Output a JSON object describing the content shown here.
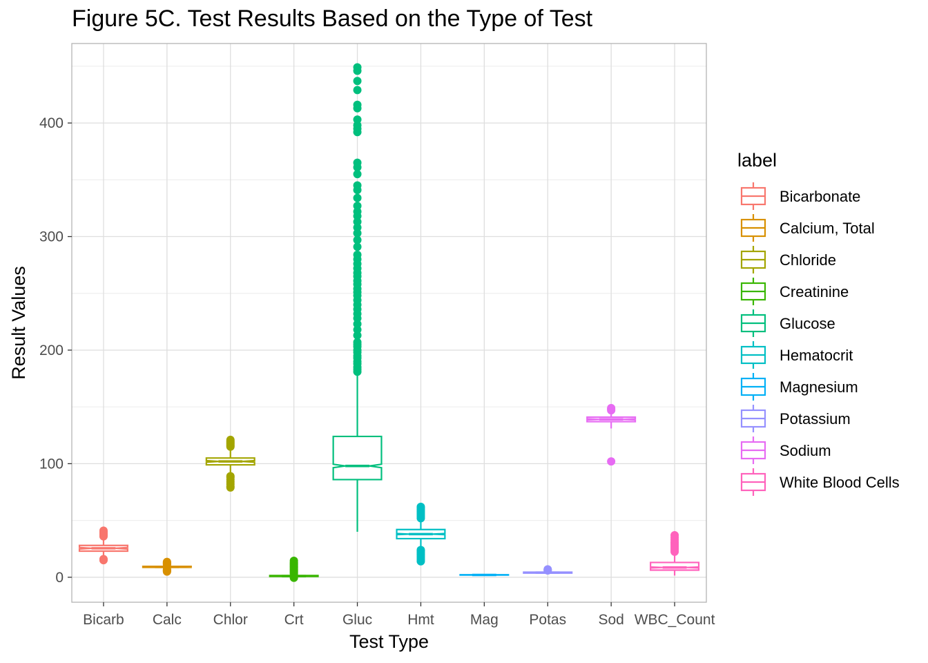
{
  "chart_data": {
    "type": "boxplot",
    "title": "Figure 5C. Test Results Based on the Type of Test",
    "xlabel": "Test Type",
    "ylabel": "Result Values",
    "ylim": [
      -22,
      470
    ],
    "yticks": [
      0,
      100,
      200,
      300,
      400
    ],
    "grid": true,
    "notched": true,
    "legend": {
      "title": "label",
      "placement": "right",
      "entries": [
        "Bicarbonate",
        "Calcium, Total",
        "Chloride",
        "Creatinine",
        "Glucose",
        "Hematocrit",
        "Magnesium",
        "Potassium",
        "Sodium",
        "White Blood Cells"
      ]
    },
    "categories": [
      "Bicarb",
      "Calc",
      "Chlor",
      "Crt",
      "Gluc",
      "Hmt",
      "Mag",
      "Potas",
      "Sod",
      "WBC_Count"
    ],
    "series": [
      {
        "name": "Bicarbonate",
        "color": "#F8766D",
        "whisker_low": 18,
        "q1": 23,
        "median": 25.5,
        "q3": 28,
        "whisker_high": 33,
        "notch": [
          24.8,
          26.2
        ],
        "outliers": [
          15,
          15.5,
          16,
          36,
          37,
          38,
          39,
          40,
          41
        ]
      },
      {
        "name": "Calcium, Total",
        "color": "#D89000",
        "whisker_low": 7.8,
        "q1": 8.7,
        "median": 9.1,
        "q3": 9.6,
        "whisker_high": 10.5,
        "notch": [
          8.95,
          9.25
        ],
        "outliers": [
          5,
          5.5,
          6,
          6.5,
          7,
          11,
          11.5,
          12,
          12.5,
          13,
          13.5
        ]
      },
      {
        "name": "Chloride",
        "color": "#A3A500",
        "whisker_low": 91,
        "q1": 99,
        "median": 102,
        "q3": 105,
        "whisker_high": 114,
        "notch": [
          101.3,
          102.7
        ],
        "outliers": [
          79,
          80,
          82,
          84,
          86,
          88,
          89,
          115,
          116,
          117,
          118,
          119,
          120,
          121
        ]
      },
      {
        "name": "Creatinine",
        "color": "#39B600",
        "whisker_low": 0.2,
        "q1": 0.7,
        "median": 1.0,
        "q3": 1.5,
        "whisker_high": 2.6,
        "notch": [
          0.9,
          1.1
        ],
        "outliers": [
          -0.5,
          3,
          4,
          5,
          6,
          7,
          8,
          9,
          10,
          11,
          12,
          13,
          14.5
        ]
      },
      {
        "name": "Glucose",
        "color": "#00BF7D",
        "whisker_low": 40,
        "q1": 86,
        "median": 98,
        "q3": 124,
        "whisker_high": 180,
        "notch": [
          96.5,
          99.5
        ],
        "outliers": [
          181,
          183,
          185,
          188,
          190,
          193,
          195,
          198,
          200,
          203,
          205,
          207,
          213,
          218,
          223,
          228,
          232,
          236,
          240,
          244,
          248,
          251,
          254,
          258,
          261,
          265,
          268,
          272,
          276,
          280,
          284,
          291,
          297,
          303,
          308,
          313,
          318,
          322,
          327,
          334,
          341,
          345,
          355,
          361,
          365,
          392,
          395,
          398,
          403,
          413,
          416,
          429,
          437,
          446,
          449
        ]
      },
      {
        "name": "Hematocrit",
        "color": "#00BFC4",
        "whisker_low": 27,
        "q1": 34,
        "median": 38,
        "q3": 42,
        "whisker_high": 50,
        "notch": [
          37.5,
          38.5
        ],
        "outliers": [
          14,
          15.5,
          17,
          18.5,
          20,
          21.5,
          23,
          24,
          52,
          53.5,
          55,
          56.5,
          58,
          59.5,
          61,
          62
        ]
      },
      {
        "name": "Magnesium",
        "color": "#00B0F6",
        "whisker_low": 1.4,
        "q1": 1.9,
        "median": 2.0,
        "q3": 2.2,
        "whisker_high": 2.7,
        "notch": [
          1.97,
          2.03
        ],
        "outliers": []
      },
      {
        "name": "Potassium",
        "color": "#9590FF",
        "whisker_low": 3.0,
        "q1": 3.7,
        "median": 4.1,
        "q3": 4.5,
        "whisker_high": 5.6,
        "notch": [
          4.0,
          4.2
        ],
        "outliers": [
          6.0,
          6.5,
          7.0
        ]
      },
      {
        "name": "Sodium",
        "color": "#E76BF3",
        "whisker_low": 131,
        "q1": 137,
        "median": 139,
        "q3": 141,
        "whisker_high": 146,
        "notch": [
          138.5,
          139.5
        ],
        "outliers": [
          102,
          147,
          148,
          149
        ]
      },
      {
        "name": "White Blood Cells",
        "color": "#FF62BC",
        "whisker_low": 1.5,
        "q1": 6.3,
        "median": 8.6,
        "q3": 13,
        "whisker_high": 21,
        "notch": [
          8.2,
          9.0
        ],
        "outliers": [
          22.5,
          24,
          25.5,
          27,
          28.5,
          30,
          31,
          33,
          35,
          37
        ]
      }
    ]
  }
}
